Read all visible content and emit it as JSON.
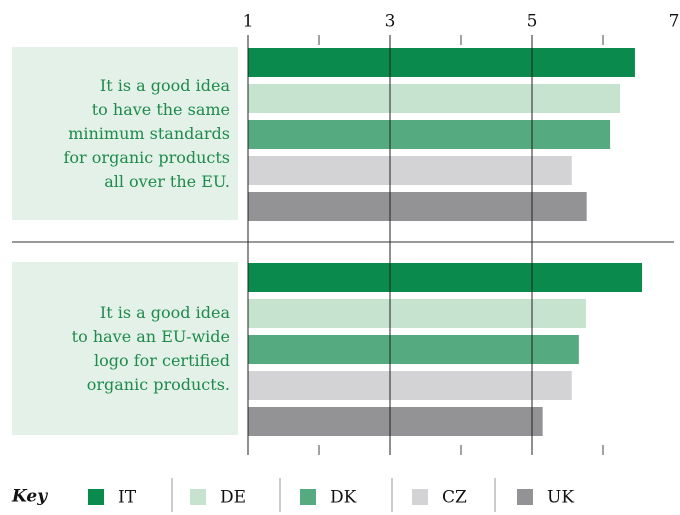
{
  "chart_data": {
    "type": "bar",
    "orientation": "horizontal",
    "categories": [
      "It is a good idea\nto have the same\nminimum standards\nfor organic products\nall over the EU.",
      "It is a good idea\nto have an EU-wide\nlogo for certified\norganic products."
    ],
    "series": [
      {
        "name": "IT",
        "color": "#0a8a4c",
        "values": [
          6.45,
          6.55
        ]
      },
      {
        "name": "DE",
        "color": "#c5e3cf",
        "values": [
          6.24,
          5.76
        ]
      },
      {
        "name": "DK",
        "color": "#55ab7f",
        "values": [
          6.1,
          5.66
        ]
      },
      {
        "name": "CZ",
        "color": "#d3d3d5",
        "values": [
          5.56,
          5.56
        ]
      },
      {
        "name": "UK",
        "color": "#939396",
        "values": [
          5.77,
          5.15
        ]
      }
    ],
    "xlim": [
      1,
      7
    ],
    "xticks": [
      1,
      3,
      5,
      7
    ],
    "xminorticks": [
      2,
      4,
      6
    ],
    "legend_title": "Key",
    "legend": "bottom"
  }
}
